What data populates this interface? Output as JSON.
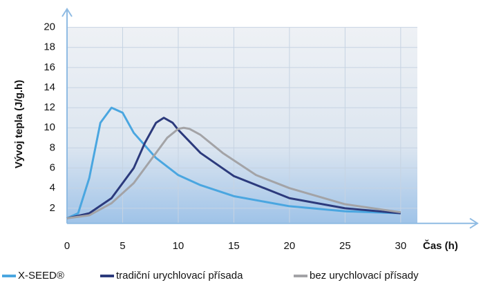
{
  "chart_data": {
    "type": "line",
    "ylabel": "Vývoj tepla (J/g.h)",
    "xlabel": "Čas (h)",
    "xlim": [
      0,
      31.5
    ],
    "ylim": [
      0.5,
      21
    ],
    "xticks": [
      0,
      5,
      10,
      15,
      20,
      25,
      30
    ],
    "yticks": [
      2,
      4,
      6,
      8,
      10,
      12,
      14,
      16,
      18,
      20
    ],
    "grid": true,
    "legend": "bottom",
    "series": [
      {
        "name": "X-SEED®",
        "color": "#4aa6e0",
        "x": [
          0,
          1,
          2,
          3,
          4,
          5,
          6,
          8,
          10,
          12,
          15,
          20,
          25,
          30
        ],
        "values": [
          1,
          1.5,
          5,
          10.5,
          12,
          11.5,
          9.5,
          7,
          5.3,
          4.3,
          3.2,
          2.2,
          1.7,
          1.5
        ]
      },
      {
        "name": "tradiční urychlovací přísada",
        "color": "#2c3a7c",
        "x": [
          0,
          2,
          4,
          6,
          7,
          8,
          8.7,
          9.5,
          10,
          12,
          15,
          20,
          25,
          30
        ],
        "values": [
          1,
          1.5,
          3,
          6,
          8.5,
          10.5,
          11,
          10.5,
          9.8,
          7.5,
          5.2,
          3,
          2,
          1.5
        ]
      },
      {
        "name": "bez urychlovací přísady",
        "color": "#a3a3a6",
        "x": [
          0,
          2,
          4,
          6,
          8,
          9,
          10,
          10.5,
          11,
          12,
          14,
          17,
          20,
          25,
          30
        ],
        "values": [
          1,
          1.3,
          2.5,
          4.5,
          7.5,
          9,
          9.9,
          10,
          9.9,
          9.3,
          7.5,
          5.3,
          4,
          2.4,
          1.6
        ]
      }
    ]
  }
}
